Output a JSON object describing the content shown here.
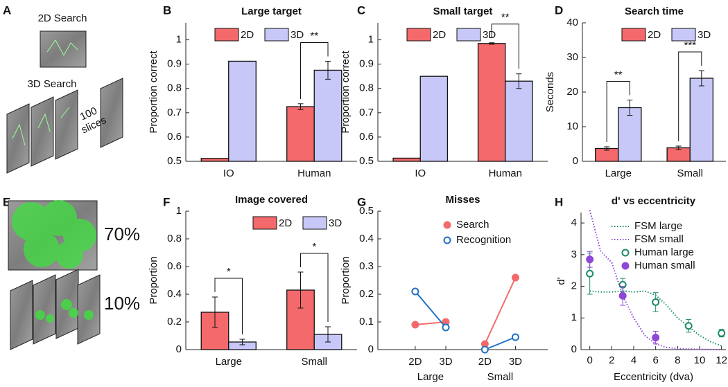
{
  "figure": {
    "panel_labels": {
      "A": "A",
      "E": "E"
    },
    "panel_a": {
      "titles": [
        "2D Search",
        "3D Search"
      ],
      "slices": [
        "100",
        "slices"
      ]
    },
    "panel_e": {
      "percents": [
        "70%",
        "10%"
      ]
    }
  },
  "chart_data": [
    {
      "panel": "B",
      "type": "bar",
      "title": "Large target",
      "ylabel": "Proportion correct",
      "categories": [
        "IO",
        "Human"
      ],
      "series": [
        {
          "name": "2D",
          "color": "#f4696b",
          "values": [
            0.512,
            0.725
          ],
          "errors": [
            null,
            0.012
          ]
        },
        {
          "name": "3D",
          "color": "#c8c8f8",
          "values": [
            0.912,
            0.875
          ],
          "errors": [
            null,
            0.037
          ]
        }
      ],
      "annotations": [
        null,
        "**"
      ],
      "ylim": [
        0.5,
        1.07
      ],
      "yticks": [
        0.5,
        0.6,
        0.7,
        0.8,
        0.9,
        1
      ],
      "legend": "upper left"
    },
    {
      "panel": "C",
      "type": "bar",
      "title": "Small target",
      "ylabel": "Proportion correct",
      "categories": [
        "IO",
        "Human"
      ],
      "series": [
        {
          "name": "2D",
          "color": "#f4696b",
          "values": [
            0.513,
            0.985
          ],
          "errors": [
            null,
            0.003
          ]
        },
        {
          "name": "3D",
          "color": "#c8c8f8",
          "values": [
            0.85,
            0.83
          ],
          "errors": [
            null,
            0.03
          ]
        }
      ],
      "annotations": [
        null,
        "**"
      ],
      "ylim": [
        0.5,
        1.07
      ],
      "yticks": [
        0.5,
        0.6,
        0.7,
        0.8,
        0.9,
        1
      ],
      "legend": "upper left"
    },
    {
      "panel": "D",
      "type": "bar",
      "title": "Search time",
      "ylabel": "Seconds",
      "categories": [
        "Large",
        "Small"
      ],
      "series": [
        {
          "name": "2D",
          "color": "#f4696b",
          "values": [
            3.7,
            3.9
          ],
          "errors": [
            0.5,
            0.5
          ]
        },
        {
          "name": "3D",
          "color": "#c8c8f8",
          "values": [
            15.5,
            24
          ],
          "errors": [
            2.2,
            2.2
          ]
        }
      ],
      "annotations": [
        "**",
        "***"
      ],
      "ylim": [
        0,
        40
      ],
      "yticks": [
        0,
        10,
        20,
        30,
        40
      ],
      "legend": "upper right"
    },
    {
      "panel": "F",
      "type": "bar",
      "title": "Image covered",
      "ylabel": "Proportion",
      "categories": [
        "Large",
        "Small"
      ],
      "series": [
        {
          "name": "2D",
          "color": "#f4696b",
          "values": [
            0.27,
            0.43
          ],
          "errors": [
            0.11,
            0.13
          ]
        },
        {
          "name": "3D",
          "color": "#c8c8f8",
          "values": [
            0.055,
            0.11
          ],
          "errors": [
            0.02,
            0.055
          ]
        }
      ],
      "annotations": [
        "*",
        "*"
      ],
      "ylim": [
        0,
        1
      ],
      "yticks": [
        0,
        0.2,
        0.4,
        0.6,
        0.8,
        1
      ],
      "legend": "upper right"
    },
    {
      "panel": "G",
      "type": "line",
      "title": "Misses",
      "ylabel": "Proportion",
      "categories": [
        "2D",
        "3D",
        "2D",
        "3D"
      ],
      "groups": [
        "Large",
        "Small"
      ],
      "series": [
        {
          "name": "Search",
          "color": "#f4696b",
          "marker": "filled",
          "values": [
            0.09,
            0.1,
            0.02,
            0.26
          ]
        },
        {
          "name": "Recognition",
          "color": "#1f6fc4",
          "marker": "open",
          "values": [
            0.21,
            0.08,
            0,
            0.045
          ]
        }
      ],
      "ylim": [
        0,
        0.5
      ],
      "yticks": [
        0,
        0.1,
        0.2,
        0.3,
        0.4,
        0.5
      ],
      "legend": "upper right"
    },
    {
      "panel": "H",
      "type": "line",
      "title": "d' vs eccentricity",
      "ylabel": "d'",
      "xlabel": "Eccentricity (dva)",
      "series": [
        {
          "name": "FSM large",
          "color": "#1b8a6b",
          "style": "dotted",
          "x": [
            0,
            1,
            2,
            3,
            4,
            5,
            6,
            7,
            8,
            9,
            10,
            11,
            12
          ],
          "values": [
            1.85,
            1.82,
            1.82,
            1.85,
            1.82,
            1.85,
            1.72,
            1.4,
            1.0,
            0.72,
            0.45,
            0.25,
            0.12
          ]
        },
        {
          "name": "FSM small",
          "color": "#8e47d6",
          "style": "dotted",
          "x": [
            0,
            1,
            2,
            3,
            4,
            5,
            6,
            7,
            8,
            10,
            12
          ],
          "values": [
            4.4,
            3.1,
            2.75,
            1.7,
            1.0,
            0.45,
            0.18,
            0.07,
            0.03,
            0.01,
            0
          ]
        },
        {
          "name": "Human large",
          "color": "#1b8a6b",
          "marker": "open",
          "x": [
            0,
            3,
            6,
            9,
            12
          ],
          "values": [
            2.4,
            2.05,
            1.5,
            0.75,
            0.52
          ],
          "errors": [
            0.65,
            0.2,
            0.3,
            0.2,
            0.12
          ]
        },
        {
          "name": "Human small",
          "color": "#8e47d6",
          "marker": "filled",
          "x": [
            0,
            3,
            6
          ],
          "values": [
            2.85,
            1.7,
            0.38
          ],
          "errors": [
            0.25,
            0.3,
            0.2
          ]
        }
      ],
      "xlim": [
        -0.8,
        12.4
      ],
      "xticks": [
        0,
        2,
        4,
        6,
        8,
        10,
        12
      ],
      "ylim": [
        0,
        4.33
      ],
      "yticks": [
        0,
        1,
        2,
        3,
        4
      ],
      "legend": "upper right"
    }
  ]
}
